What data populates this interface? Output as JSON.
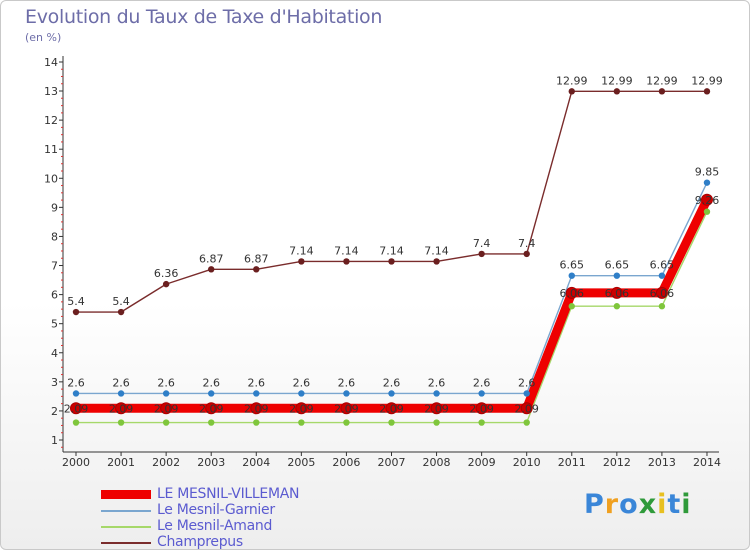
{
  "header": {
    "title": "Evolution du Taux de Taxe d'Habitation",
    "subtitle": "(en %)"
  },
  "logo": {
    "text": "Proxiti",
    "letters": [
      "P",
      "r",
      "o",
      "x",
      "i",
      "t",
      "i"
    ],
    "colors": [
      "#3a86d8",
      "#f0a020",
      "#3a86d8",
      "#2f9a3a",
      "#e8c020",
      "#3a86d8",
      "#2f9a3a"
    ]
  },
  "chart_data": {
    "type": "line",
    "x": [
      "2000",
      "2001",
      "2002",
      "2003",
      "2004",
      "2005",
      "2006",
      "2007",
      "2008",
      "2009",
      "2010",
      "2011",
      "2012",
      "2013",
      "2014"
    ],
    "y_ticks": [
      1,
      2,
      3,
      4,
      5,
      6,
      7,
      8,
      9,
      10,
      11,
      12,
      13,
      14
    ],
    "ylim": [
      1,
      14
    ],
    "grid": false,
    "legend_position": "bottom-left",
    "series": [
      {
        "name": "Champrepus",
        "color": "#7a2c2c",
        "marker_color": "#6b1f1f",
        "values": [
          5.4,
          5.4,
          6.36,
          6.87,
          6.87,
          7.14,
          7.14,
          7.14,
          7.14,
          7.4,
          7.4,
          12.99,
          12.99,
          12.99,
          12.99
        ],
        "labels": [
          "5.4",
          "5.4",
          "6.36",
          "6.87",
          "6.87",
          "7.14",
          "7.14",
          "7.14",
          "7.14",
          "7.4",
          "7.4",
          "12.99",
          "12.99",
          "12.99",
          "12.99"
        ]
      },
      {
        "name": "Le Mesnil-Garnier",
        "color": "#7aa6cf",
        "marker_color": "#2f7fc8",
        "values": [
          2.6,
          2.6,
          2.6,
          2.6,
          2.6,
          2.6,
          2.6,
          2.6,
          2.6,
          2.6,
          2.6,
          6.65,
          6.65,
          6.65,
          9.85
        ],
        "labels": [
          "2.6",
          "2.6",
          "2.6",
          "2.6",
          "2.6",
          "2.6",
          "2.6",
          "2.6",
          "2.6",
          "2.6",
          "2.6",
          "6.65",
          "6.65",
          "6.65",
          "9.85"
        ]
      },
      {
        "name": "Le Mesnil-Amand",
        "color": "#a6d86a",
        "marker_color": "#7fc63c",
        "values": [
          1.6,
          1.6,
          1.6,
          1.6,
          1.6,
          1.6,
          1.6,
          1.6,
          1.6,
          1.6,
          1.6,
          5.6,
          5.6,
          5.6,
          8.85
        ],
        "labels": []
      },
      {
        "name": "LE MESNIL-VILLEMAN",
        "color": "#ee0000",
        "marker_color": "#cc0000",
        "values": [
          2.09,
          2.09,
          2.09,
          2.09,
          2.09,
          2.09,
          2.09,
          2.09,
          2.09,
          2.09,
          2.09,
          6.06,
          6.06,
          6.06,
          9.26
        ],
        "labels": [
          "2.09",
          "2.09",
          "2.09",
          "2.09",
          "2.09",
          "2.09",
          "2.09",
          "2.09",
          "2.09",
          "2.09",
          "2.09",
          "6.06",
          "6.06",
          "6.06",
          "9.26"
        ]
      }
    ],
    "legend_order": [
      "LE MESNIL-VILLEMAN",
      "Le Mesnil-Garnier",
      "Le Mesnil-Amand",
      "Champrepus"
    ]
  },
  "legend": {
    "items": [
      {
        "label": "LE MESNIL-VILLEMAN",
        "color": "#ee0000",
        "thickness": "thick"
      },
      {
        "label": "Le Mesnil-Garnier",
        "color": "#7aa6cf",
        "thickness": "thin"
      },
      {
        "label": "Le Mesnil-Amand",
        "color": "#a6d86a",
        "thickness": "thin"
      },
      {
        "label": "Champrepus",
        "color": "#7a2c2c",
        "thickness": "thin"
      }
    ]
  }
}
